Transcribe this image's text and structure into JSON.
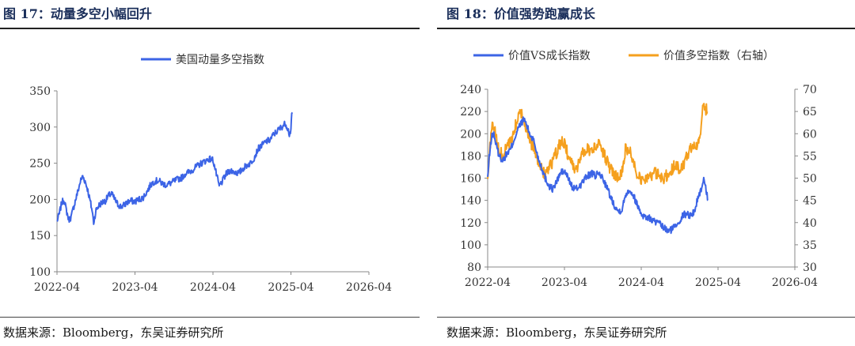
{
  "left": {
    "title": "图 17：动量多空小幅回升",
    "source": "数据来源：Bloomberg，东吴证券研究所"
  },
  "right": {
    "title": "图 18：价值强势跑赢成长",
    "source": "数据来源：Bloomberg，东吴证券研究所"
  },
  "colors": {
    "blue": "#3c64e6",
    "orange": "#f5a01e",
    "title": "#1a2e5a"
  },
  "chart_data": [
    {
      "type": "line",
      "title": "",
      "legend": [
        "美国动量多空指数"
      ],
      "x_ticks": [
        "2022-04",
        "2023-04",
        "2024-04",
        "2025-04",
        "2026-04"
      ],
      "ylim": [
        100,
        350
      ],
      "y_ticks": [
        100,
        150,
        200,
        250,
        300,
        350
      ],
      "series": [
        {
          "name": "美国动量多空指数",
          "anchors": [
            [
              0.0,
              170
            ],
            [
              0.03,
              180
            ],
            [
              0.06,
              195
            ],
            [
              0.09,
              200
            ],
            [
              0.12,
              185
            ],
            [
              0.15,
              172
            ],
            [
              0.18,
              175
            ],
            [
              0.21,
              188
            ],
            [
              0.24,
              200
            ],
            [
              0.27,
              212
            ],
            [
              0.3,
              225
            ],
            [
              0.33,
              232
            ],
            [
              0.36,
              225
            ],
            [
              0.39,
              215
            ],
            [
              0.42,
              200
            ],
            [
              0.45,
              185
            ],
            [
              0.47,
              168
            ],
            [
              0.5,
              185
            ],
            [
              0.54,
              192
            ],
            [
              0.58,
              196
            ],
            [
              0.62,
              198
            ],
            [
              0.66,
              205
            ],
            [
              0.7,
              208
            ],
            [
              0.74,
              200
            ],
            [
              0.78,
              193
            ],
            [
              0.82,
              190
            ],
            [
              0.86,
              192
            ],
            [
              0.9,
              196
            ],
            [
              0.95,
              198
            ],
            [
              1.0,
              197
            ],
            [
              1.05,
              200
            ],
            [
              1.1,
              202
            ],
            [
              1.15,
              210
            ],
            [
              1.2,
              220
            ],
            [
              1.25,
              225
            ],
            [
              1.3,
              226
            ],
            [
              1.35,
              222
            ],
            [
              1.4,
              220
            ],
            [
              1.45,
              222
            ],
            [
              1.5,
              225
            ],
            [
              1.55,
              228
            ],
            [
              1.6,
              230
            ],
            [
              1.65,
              236
            ],
            [
              1.7,
              238
            ],
            [
              1.75,
              242
            ],
            [
              1.8,
              246
            ],
            [
              1.85,
              250
            ],
            [
              1.9,
              253
            ],
            [
              1.95,
              256
            ],
            [
              2.0,
              255
            ],
            [
              2.05,
              232
            ],
            [
              2.08,
              218
            ],
            [
              2.12,
              225
            ],
            [
              2.17,
              235
            ],
            [
              2.22,
              240
            ],
            [
              2.28,
              238
            ],
            [
              2.33,
              236
            ],
            [
              2.38,
              242
            ],
            [
              2.43,
              247
            ],
            [
              2.48,
              250
            ],
            [
              2.53,
              258
            ],
            [
              2.58,
              270
            ],
            [
              2.63,
              275
            ],
            [
              2.68,
              280
            ],
            [
              2.73,
              282
            ],
            [
              2.78,
              290
            ],
            [
              2.83,
              295
            ],
            [
              2.88,
              300
            ],
            [
              2.93,
              305
            ],
            [
              2.96,
              298
            ],
            [
              2.98,
              290
            ],
            [
              3.0,
              296
            ],
            [
              3.01,
              315
            ],
            [
              3.02,
              320
            ]
          ]
        }
      ]
    },
    {
      "type": "line",
      "title": "",
      "legend": [
        "价值VS成长指数",
        "价值多空指数（右轴）"
      ],
      "x_ticks": [
        "2022-04",
        "2023-04",
        "2024-04",
        "2025-04",
        "2026-04"
      ],
      "ylim": [
        80,
        240
      ],
      "y_ticks": [
        80,
        100,
        120,
        140,
        160,
        180,
        200,
        220,
        240
      ],
      "y2lim": [
        30,
        70
      ],
      "y2_ticks": [
        30,
        35,
        40,
        45,
        50,
        55,
        60,
        65,
        70
      ],
      "series": [
        {
          "name": "价值VS成长指数",
          "axis": "left",
          "anchors": [
            [
              0.0,
              160
            ],
            [
              0.02,
              178
            ],
            [
              0.05,
              197
            ],
            [
              0.08,
              200
            ],
            [
              0.11,
              190
            ],
            [
              0.15,
              180
            ],
            [
              0.2,
              176
            ],
            [
              0.25,
              182
            ],
            [
              0.3,
              186
            ],
            [
              0.35,
              196
            ],
            [
              0.4,
              205
            ],
            [
              0.45,
              211
            ],
            [
              0.48,
              213
            ],
            [
              0.52,
              205
            ],
            [
              0.56,
              198
            ],
            [
              0.6,
              194
            ],
            [
              0.65,
              180
            ],
            [
              0.7,
              170
            ],
            [
              0.75,
              160
            ],
            [
              0.8,
              153
            ],
            [
              0.85,
              150
            ],
            [
              0.9,
              157
            ],
            [
              0.95,
              165
            ],
            [
              1.0,
              166
            ],
            [
              1.05,
              160
            ],
            [
              1.1,
              152
            ],
            [
              1.15,
              150
            ],
            [
              1.2,
              153
            ],
            [
              1.25,
              158
            ],
            [
              1.3,
              162
            ],
            [
              1.35,
              164
            ],
            [
              1.4,
              162
            ],
            [
              1.45,
              164
            ],
            [
              1.5,
              160
            ],
            [
              1.55,
              152
            ],
            [
              1.6,
              143
            ],
            [
              1.65,
              136
            ],
            [
              1.7,
              130
            ],
            [
              1.75,
              132
            ],
            [
              1.8,
              146
            ],
            [
              1.85,
              150
            ],
            [
              1.9,
              144
            ],
            [
              1.95,
              136
            ],
            [
              2.0,
              128
            ],
            [
              2.05,
              125
            ],
            [
              2.1,
              124
            ],
            [
              2.15,
              122
            ],
            [
              2.2,
              120
            ],
            [
              2.25,
              118
            ],
            [
              2.3,
              115
            ],
            [
              2.35,
              112
            ],
            [
              2.4,
              114
            ],
            [
              2.45,
              118
            ],
            [
              2.5,
              122
            ],
            [
              2.55,
              127
            ],
            [
              2.6,
              128
            ],
            [
              2.65,
              126
            ],
            [
              2.7,
              132
            ],
            [
              2.75,
              145
            ],
            [
              2.78,
              150
            ],
            [
              2.8,
              154
            ],
            [
              2.82,
              160
            ],
            [
              2.85,
              148
            ],
            [
              2.87,
              140
            ]
          ]
        },
        {
          "name": "价值多空指数（右轴）",
          "axis": "right",
          "anchors": [
            [
              0.0,
              49
            ],
            [
              0.03,
              57
            ],
            [
              0.06,
              62
            ],
            [
              0.09,
              61
            ],
            [
              0.12,
              58
            ],
            [
              0.15,
              56
            ],
            [
              0.2,
              55
            ],
            [
              0.25,
              57
            ],
            [
              0.3,
              58
            ],
            [
              0.35,
              61
            ],
            [
              0.4,
              64
            ],
            [
              0.45,
              65
            ],
            [
              0.48,
              63
            ],
            [
              0.52,
              60
            ],
            [
              0.56,
              58
            ],
            [
              0.6,
              57
            ],
            [
              0.65,
              54
            ],
            [
              0.7,
              52
            ],
            [
              0.75,
              51
            ],
            [
              0.8,
              52
            ],
            [
              0.85,
              54
            ],
            [
              0.9,
              56
            ],
            [
              0.95,
              58
            ],
            [
              1.0,
              58
            ],
            [
              1.05,
              55
            ],
            [
              1.1,
              53
            ],
            [
              1.15,
              52
            ],
            [
              1.2,
              54
            ],
            [
              1.25,
              56
            ],
            [
              1.3,
              57
            ],
            [
              1.35,
              56
            ],
            [
              1.4,
              57
            ],
            [
              1.45,
              58
            ],
            [
              1.5,
              56
            ],
            [
              1.55,
              54
            ],
            [
              1.6,
              52
            ],
            [
              1.65,
              51
            ],
            [
              1.7,
              50
            ],
            [
              1.75,
              52
            ],
            [
              1.8,
              57
            ],
            [
              1.85,
              56
            ],
            [
              1.9,
              54
            ],
            [
              1.95,
              51
            ],
            [
              2.0,
              50
            ],
            [
              2.05,
              50
            ],
            [
              2.1,
              50
            ],
            [
              2.15,
              51
            ],
            [
              2.2,
              51
            ],
            [
              2.25,
              50
            ],
            [
              2.3,
              50
            ],
            [
              2.35,
              51
            ],
            [
              2.4,
              52
            ],
            [
              2.45,
              53
            ],
            [
              2.5,
              52
            ],
            [
              2.55,
              53
            ],
            [
              2.6,
              55
            ],
            [
              2.65,
              57
            ],
            [
              2.7,
              58
            ],
            [
              2.73,
              57
            ],
            [
              2.76,
              59
            ],
            [
              2.78,
              62
            ],
            [
              2.8,
              65
            ],
            [
              2.83,
              66
            ],
            [
              2.86,
              65
            ]
          ]
        }
      ]
    }
  ]
}
